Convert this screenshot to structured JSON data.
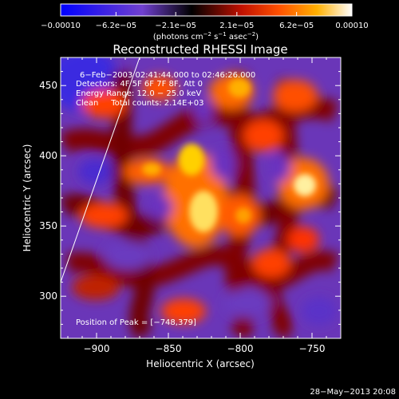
{
  "colorbar": {
    "tick_labels": [
      "−0.00010",
      "−6.2e−05",
      "−2.1e−05",
      "2.1e−05",
      "6.2e−05",
      "0.00010"
    ],
    "tick_values": [
      -0.0001,
      -6.2e-05,
      -2.1e-05,
      2.1e-05,
      6.2e-05,
      0.0001
    ],
    "range": [
      -0.0001,
      0.0001
    ],
    "units_prefix": "(photons cm",
    "units_sup1": "−2",
    "units_mid": " s",
    "units_sup2": "−1",
    "units_mid2": " asec",
    "units_sup3": "−2",
    "units_suffix": ")"
  },
  "chart_data": {
    "type": "heatmap",
    "title": "Reconstructed RHESSI Image",
    "xlabel": "Heliocentric X (arcsec)",
    "ylabel": "Heliocentric Y (arcsec)",
    "xlim": [
      -925,
      -730
    ],
    "ylim": [
      270,
      470
    ],
    "x_ticks": [
      -900,
      -850,
      -800,
      -750
    ],
    "y_ticks": [
      300,
      350,
      400,
      450
    ],
    "x_tick_labels": [
      "−900",
      "−850",
      "−800",
      "−750"
    ],
    "y_tick_labels": [
      "300",
      "350",
      "400",
      "450"
    ],
    "annotations": [
      "6−Feb−2003 02:41:44.000 to 02:46:26.000",
      "Detectors: 4F 5F 6F 7F 8F, Att 0",
      "Energy Range: 12.0 − 25.0 keV",
      "Clean     Total counts: 2.14E+03"
    ],
    "peak_label": "Position of Peak = [−748,379]",
    "peak": [
      -748,
      379
    ],
    "limb_line": [
      [
        -925,
        310
      ],
      [
        -870,
        470
      ]
    ],
    "colormap": [
      "#0000ff",
      "#8040c0",
      "#000000",
      "#c01000",
      "#ff6000",
      "#ffc000",
      "#ffffff"
    ]
  },
  "footer": {
    "date": "28−May−2013 20:08"
  }
}
